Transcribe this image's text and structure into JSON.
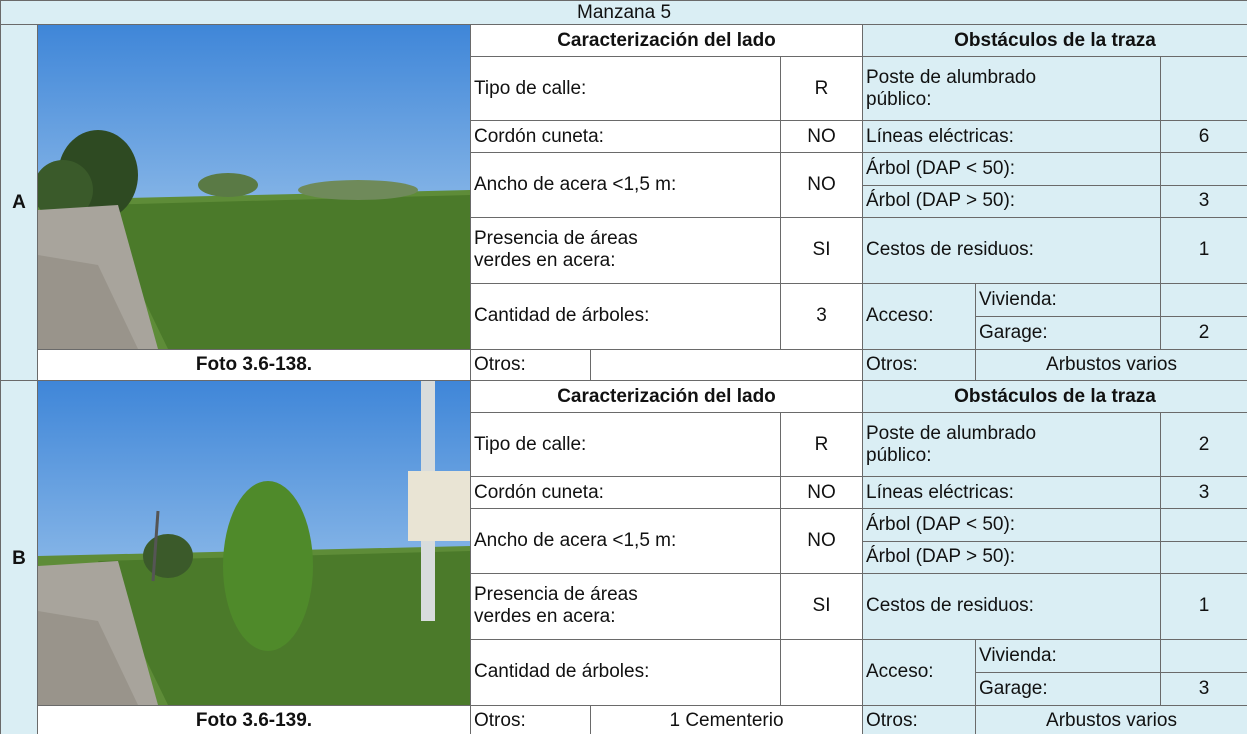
{
  "header": {
    "title": "Manzana 5"
  },
  "sections": [
    {
      "label": "A",
      "photo_caption": "Foto 3.6-138.",
      "characterization": {
        "title": "Caracterización del lado",
        "street_type": {
          "label": "Tipo de calle:",
          "value": "R"
        },
        "curb": {
          "label": "Cordón cuneta:",
          "value": "NO"
        },
        "sidewalk_width": {
          "label": "Ancho de acera <1,5 m:",
          "value": "NO"
        },
        "green_areas": {
          "label": "Presencia de áreas verdes en acera:",
          "value": "SI"
        },
        "tree_count": {
          "label": "Cantidad de árboles:",
          "value": 3
        },
        "others": {
          "label": "Otros:"
        }
      },
      "obstacles": {
        "title": "Obstáculos de la traza",
        "street_light": {
          "label": "Poste de alumbrado público:"
        },
        "power_lines": {
          "label": "Líneas eléctricas:",
          "value": 6
        },
        "tree_small": {
          "label": "Árbol (DAP < 50):"
        },
        "tree_large": {
          "label": "Árbol (DAP > 50):",
          "value": 3
        },
        "waste_bins": {
          "label": "Cestos de residuos:",
          "value": 1
        },
        "access": {
          "label": "Acceso:",
          "dwelling": {
            "label": "Vivienda:"
          },
          "garage": {
            "label": "Garage:",
            "value": 2
          }
        },
        "others": {
          "label": "Otros:",
          "value": "Arbustos varios"
        }
      }
    },
    {
      "label": "B",
      "photo_caption": "Foto 3.6-139.",
      "characterization": {
        "title": "Caracterización del lado",
        "street_type": {
          "label": "Tipo de calle:",
          "value": "R"
        },
        "curb": {
          "label": "Cordón cuneta:",
          "value": "NO"
        },
        "sidewalk_width": {
          "label": "Ancho de acera <1,5 m:",
          "value": "NO"
        },
        "green_areas": {
          "label": "Presencia de áreas verdes en acera:",
          "value": "SI"
        },
        "tree_count": {
          "label": "Cantidad de árboles:"
        },
        "others": {
          "label": "Otros:",
          "value": "1 Cementerio"
        }
      },
      "obstacles": {
        "title": "Obstáculos de la traza",
        "street_light": {
          "label": "Poste de alumbrado público:",
          "value": 2
        },
        "power_lines": {
          "label": "Líneas eléctricas:",
          "value": 3
        },
        "tree_small": {
          "label": "Árbol (DAP < 50):"
        },
        "tree_large": {
          "label": "Árbol (DAP > 50):"
        },
        "waste_bins": {
          "label": "Cestos de residuos:",
          "value": 1
        },
        "access": {
          "label": "Acceso:",
          "dwelling": {
            "label": "Vivienda:"
          },
          "garage": {
            "label": "Garage:",
            "value": 3
          }
        },
        "others": {
          "label": "Otros:",
          "value": "Arbustos varios"
        }
      }
    }
  ]
}
